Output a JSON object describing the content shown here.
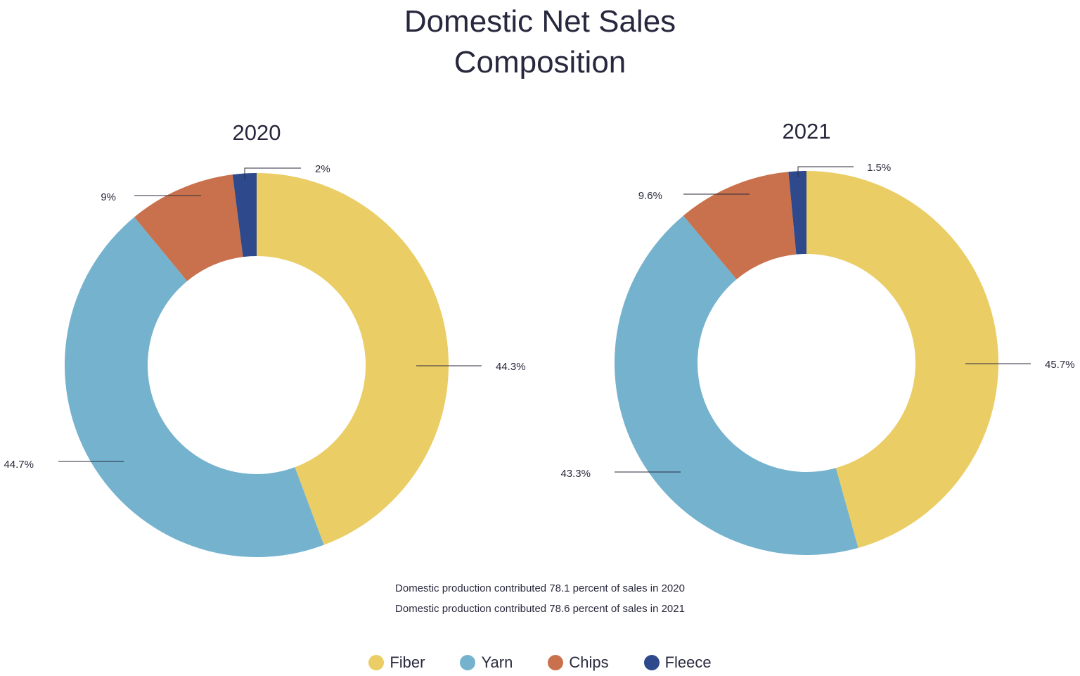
{
  "chart_data": {
    "type": "donut",
    "title": [
      "Domestic Net Sales",
      "Composition"
    ],
    "categories": [
      "Fiber",
      "Yarn",
      "Chips",
      "Fleece"
    ],
    "colors": {
      "Fiber": "#ebcd66",
      "Yarn": "#74b2ce",
      "Chips": "#c9714c",
      "Fleece": "#2e4a8c"
    },
    "charts": [
      {
        "year": "2020",
        "values": [
          44.3,
          44.7,
          9,
          2
        ],
        "labels": [
          "44.3%",
          "44.7%",
          "9%",
          "2%"
        ]
      },
      {
        "year": "2021",
        "values": [
          45.7,
          43.3,
          9.6,
          1.5
        ],
        "labels": [
          "45.7%",
          "43.3%",
          "9.6%",
          "1.5%"
        ]
      }
    ],
    "notes": [
      "Domestic production contributed 78.1 percent of sales in 2020",
      "Domestic production contributed 78.6 percent of sales in 2021"
    ]
  }
}
